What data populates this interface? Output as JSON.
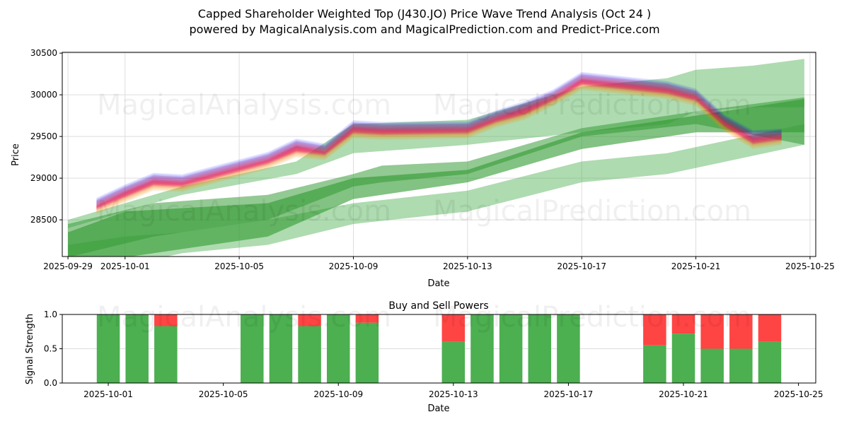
{
  "title_line1": "Capped Shareholder Weighted Top (J430.JO) Price Wave Trend Analysis (Oct 24 )",
  "title_line2": "powered by MagicalAnalysis.com and MagicalPrediction.com and Predict-Price.com",
  "watermarks": [
    "MagicalAnalysis.com",
    "MagicalPrediction.com"
  ],
  "chart_data": [
    {
      "type": "area",
      "title": "",
      "xlabel": "Date",
      "ylabel": "Price",
      "xlim": [
        "2025-09-28.8",
        "2025-10-25.2"
      ],
      "ylim": [
        28060,
        30510
      ],
      "grid": true,
      "xticks": [
        "2025-09-29",
        "2025-10-01",
        "2025-10-05",
        "2025-10-09",
        "2025-10-13",
        "2025-10-17",
        "2025-10-21",
        "2025-10-25"
      ],
      "yticks": [
        28500,
        29000,
        29500,
        30000,
        30500
      ],
      "price": {
        "dates": [
          "2025-09-30",
          "2025-10-01",
          "2025-10-02",
          "2025-10-03",
          "2025-10-06",
          "2025-10-07",
          "2025-10-08",
          "2025-10-09",
          "2025-10-10",
          "2025-10-13",
          "2025-10-14",
          "2025-10-15",
          "2025-10-16",
          "2025-10-17",
          "2025-10-20",
          "2025-10-21",
          "2025-10-22",
          "2025-10-23",
          "2025-10-24"
        ],
        "values": [
          28650,
          28800,
          28950,
          28920,
          29200,
          29350,
          29300,
          29570,
          29560,
          29560,
          29700,
          29800,
          29950,
          30150,
          30050,
          29950,
          29650,
          29450,
          29480
        ]
      },
      "wave_bands": [
        {
          "color": "#0000ff",
          "offset": 60,
          "spread": 110
        },
        {
          "color": "#ff0000",
          "offset": 20,
          "spread": 130
        },
        {
          "color": "#ff8c00",
          "offset": -40,
          "spread": 90
        },
        {
          "color": "#c00080",
          "offset": 0,
          "spread": 60
        },
        {
          "color": "#ff3050",
          "offset": 10,
          "spread": 40
        }
      ],
      "trend_bands": [
        {
          "color": "#4caf50",
          "opacity": 0.45,
          "points": [
            [
              "2025-09-29",
              28400,
              28500
            ],
            [
              "2025-10-03",
              28800,
              28900
            ],
            [
              "2025-10-07",
              29050,
              29200
            ],
            [
              "2025-10-09",
              29300,
              29650
            ],
            [
              "2025-10-13",
              29400,
              29700
            ],
            [
              "2025-10-17",
              29550,
              30100
            ],
            [
              "2025-10-20",
              29650,
              30200
            ],
            [
              "2025-10-21",
              29800,
              30300
            ],
            [
              "2025-10-23",
              29850,
              30350
            ],
            [
              "2025-10-24.8",
              29850,
              30430
            ]
          ]
        },
        {
          "color": "#4caf50",
          "opacity": 0.45,
          "points": [
            [
              "2025-09-29",
              27800,
              28200
            ],
            [
              "2025-10-01",
              27950,
              28300
            ],
            [
              "2025-10-03",
              28100,
              28350
            ],
            [
              "2025-10-06",
              28200,
              28500
            ],
            [
              "2025-10-09",
              28450,
              28700
            ],
            [
              "2025-10-13",
              28600,
              28850
            ],
            [
              "2025-10-17",
              28950,
              29200
            ],
            [
              "2025-10-20",
              29050,
              29300
            ],
            [
              "2025-10-24.8",
              29400,
              29650
            ]
          ]
        },
        {
          "color": "#3a9d3a",
          "opacity": 0.55,
          "points": [
            [
              "2025-09-29",
              28050,
              28450
            ],
            [
              "2025-10-02",
              28300,
              28700
            ],
            [
              "2025-10-06",
              28500,
              28800
            ],
            [
              "2025-10-09",
              28900,
              29050
            ],
            [
              "2025-10-10",
              28950,
              29150
            ],
            [
              "2025-10-13",
              29050,
              29200
            ],
            [
              "2025-10-17",
              29500,
              29600
            ],
            [
              "2025-10-21",
              29650,
              29800
            ],
            [
              "2025-10-24.8",
              29400,
              29970
            ]
          ]
        },
        {
          "color": "#2e9a2e",
          "opacity": 0.6,
          "points": [
            [
              "2025-09-29",
              27900,
              28350
            ],
            [
              "2025-10-01",
              28050,
              28600
            ],
            [
              "2025-10-06",
              28300,
              28700
            ],
            [
              "2025-10-09",
              28750,
              29000
            ],
            [
              "2025-10-13",
              28950,
              29100
            ],
            [
              "2025-10-17",
              29350,
              29550
            ],
            [
              "2025-10-21",
              29550,
              29750
            ],
            [
              "2025-10-24.8",
              29550,
              29950
            ]
          ]
        }
      ]
    },
    {
      "type": "bar",
      "title": "Buy and Sell Powers",
      "xlabel": "Date",
      "ylabel": "Signal Strength",
      "ylim": [
        0,
        1
      ],
      "yticks": [
        "0.0",
        "0.5",
        "1.0"
      ],
      "xticks": [
        "2025-10-01",
        "2025-10-05",
        "2025-10-09",
        "2025-10-13",
        "2025-10-17",
        "2025-10-21",
        "2025-10-25"
      ],
      "xlim": [
        "2025-09-29.4",
        "2025-10-25.6"
      ],
      "buy_color": "#4caf50",
      "sell_color": "#ff4444",
      "categories": [
        "2025-10-01",
        "2025-10-02",
        "2025-10-03",
        "2025-10-06",
        "2025-10-07",
        "2025-10-08",
        "2025-10-09",
        "2025-10-10",
        "2025-10-13",
        "2025-10-14",
        "2025-10-15",
        "2025-10-16",
        "2025-10-17",
        "2025-10-20",
        "2025-10-21",
        "2025-10-22",
        "2025-10-23",
        "2025-10-24"
      ],
      "series": [
        {
          "name": "Buy",
          "values": [
            1,
            1,
            0.83,
            1,
            1,
            0.83,
            1,
            0.88,
            0.6,
            1,
            1,
            1,
            1,
            0.55,
            0.72,
            0.5,
            0.5,
            0.6
          ]
        },
        {
          "name": "Sell",
          "values": [
            0,
            0,
            0.17,
            0,
            0,
            0.17,
            0,
            0.12,
            0.4,
            0,
            0,
            0,
            0,
            0.45,
            0.28,
            0.5,
            0.5,
            0.4
          ]
        }
      ]
    }
  ]
}
